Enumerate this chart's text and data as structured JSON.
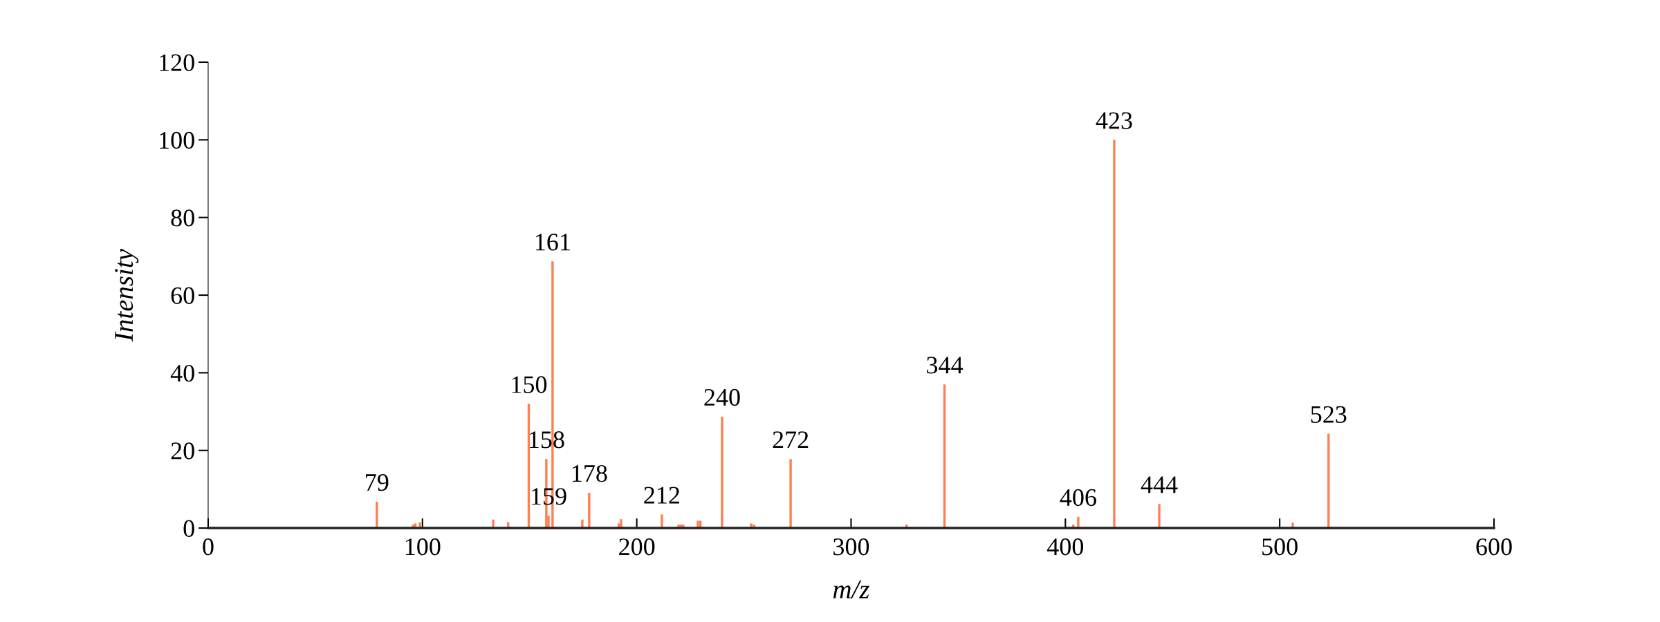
{
  "chart_data": {
    "type": "bar",
    "xlabel": "m/z",
    "ylabel": "Intensity",
    "color": "#ff7f50",
    "x": [
      78.7,
      95.6,
      96.7,
      98.8,
      133,
      140,
      149.6,
      157.8,
      158.8,
      160.7,
      174.6,
      177.8,
      191.6,
      192.7,
      211.7,
      219.5,
      220.6,
      221.7,
      228.5,
      229.7,
      239.8,
      253.4,
      254.7,
      271.8,
      325.9,
      343.6,
      403.7,
      406,
      422.8,
      443.8,
      506.1,
      522.8
    ],
    "values": [
      6.8,
      0.9,
      1.2,
      1.5,
      2.2,
      1.5,
      32,
      17.8,
      3.2,
      68.7,
      2.2,
      9.1,
      1.2,
      2.3,
      3.5,
      0.9,
      0.9,
      0.9,
      1.9,
      1.9,
      28.7,
      1.2,
      0.9,
      17.8,
      0.9,
      37,
      0.9,
      2.9,
      100,
      6.2,
      1.4,
      24.3
    ],
    "xlim": [
      0,
      600
    ],
    "xticks": [
      0,
      100,
      200,
      300,
      400,
      500,
      600
    ],
    "ylim": [
      0,
      120
    ],
    "yticks": [
      0,
      20,
      40,
      60,
      80,
      100,
      120
    ],
    "grid": false,
    "annotations": [
      {
        "text": "79",
        "x": 78.7,
        "y": 6.8
      },
      {
        "text": "150",
        "x": 149.6,
        "y": 32
      },
      {
        "text": "158",
        "x": 157.8,
        "y": 17.8
      },
      {
        "text": "159",
        "x": 158.8,
        "y": 3.2
      },
      {
        "text": "161",
        "x": 160.7,
        "y": 68.7
      },
      {
        "text": "178",
        "x": 177.8,
        "y": 9.1
      },
      {
        "text": "212",
        "x": 211.7,
        "y": 3.5
      },
      {
        "text": "240",
        "x": 239.8,
        "y": 28.7
      },
      {
        "text": "272",
        "x": 271.8,
        "y": 17.8
      },
      {
        "text": "344",
        "x": 343.6,
        "y": 37
      },
      {
        "text": "406",
        "x": 406,
        "y": 2.9
      },
      {
        "text": "423",
        "x": 422.8,
        "y": 100
      },
      {
        "text": "444",
        "x": 443.8,
        "y": 6.2
      },
      {
        "text": "523",
        "x": 522.8,
        "y": 24.3
      }
    ]
  }
}
